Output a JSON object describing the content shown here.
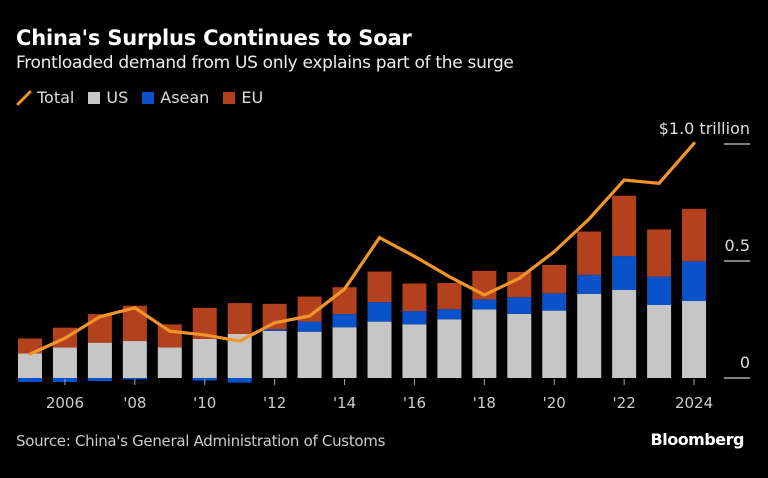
{
  "title": "China's Surplus Continues to Soar",
  "subtitle": "Frontloaded demand from US only explains part of the surge",
  "source": "Source: China's General Administration of Customs",
  "brand": "Bloomberg",
  "colors": {
    "Total": "#f0952a",
    "US": "#c6c6c6",
    "Asean": "#0a52c9",
    "EU": "#b4411d"
  },
  "chart_data": {
    "type": "bar",
    "stacked": true,
    "title": "China's Surplus Continues to Soar",
    "subtitle": "Frontloaded demand from US only explains part of the surge",
    "legend_position": "top-left",
    "legend": [
      "Total",
      "US",
      "Asean",
      "EU"
    ],
    "x": [
      2005,
      2006,
      2007,
      2008,
      2009,
      2010,
      2011,
      2012,
      2013,
      2014,
      2015,
      2016,
      2017,
      2018,
      2019,
      2020,
      2021,
      2022,
      2023,
      2024
    ],
    "x_tick_labels": [
      {
        "year": 2006,
        "label": "2006"
      },
      {
        "year": 2008,
        "label": "'08"
      },
      {
        "year": 2010,
        "label": "'10"
      },
      {
        "year": 2012,
        "label": "'12"
      },
      {
        "year": 2014,
        "label": "'14"
      },
      {
        "year": 2016,
        "label": "'16"
      },
      {
        "year": 2018,
        "label": "'18"
      },
      {
        "year": 2020,
        "label": "'20"
      },
      {
        "year": 2022,
        "label": "'22"
      },
      {
        "year": 2024,
        "label": "2024"
      }
    ],
    "y_ticks": [
      {
        "value": 0,
        "label": "0"
      },
      {
        "value": 0.5,
        "label": "0.5"
      },
      {
        "value": 1.0,
        "label": "$1.0 trillion"
      }
    ],
    "ylim": [
      -0.03,
      1.0
    ],
    "y_unit": "trillion USD",
    "grid": false,
    "series": [
      {
        "name": "US",
        "type": "bar",
        "values": [
          0.105,
          0.131,
          0.151,
          0.158,
          0.131,
          0.167,
          0.188,
          0.201,
          0.198,
          0.217,
          0.241,
          0.229,
          0.251,
          0.293,
          0.274,
          0.288,
          0.36,
          0.376,
          0.312,
          0.329
        ]
      },
      {
        "name": "Asean",
        "type": "bar",
        "values": [
          -0.017,
          -0.017,
          -0.013,
          -0.006,
          0.0,
          -0.011,
          -0.02,
          0.007,
          0.043,
          0.056,
          0.083,
          0.057,
          0.043,
          0.043,
          0.071,
          0.074,
          0.081,
          0.145,
          0.121,
          0.17
        ]
      },
      {
        "name": "EU",
        "type": "bar",
        "values": [
          0.064,
          0.084,
          0.122,
          0.151,
          0.098,
          0.133,
          0.132,
          0.109,
          0.107,
          0.115,
          0.131,
          0.118,
          0.112,
          0.122,
          0.108,
          0.121,
          0.185,
          0.258,
          0.202,
          0.224
        ]
      },
      {
        "name": "Total",
        "type": "line",
        "values": [
          0.102,
          0.17,
          0.262,
          0.3,
          0.2,
          0.184,
          0.158,
          0.236,
          0.265,
          0.38,
          0.6,
          0.52,
          0.433,
          0.355,
          0.426,
          0.54,
          0.68,
          0.846,
          0.832,
          1.003
        ]
      }
    ]
  }
}
